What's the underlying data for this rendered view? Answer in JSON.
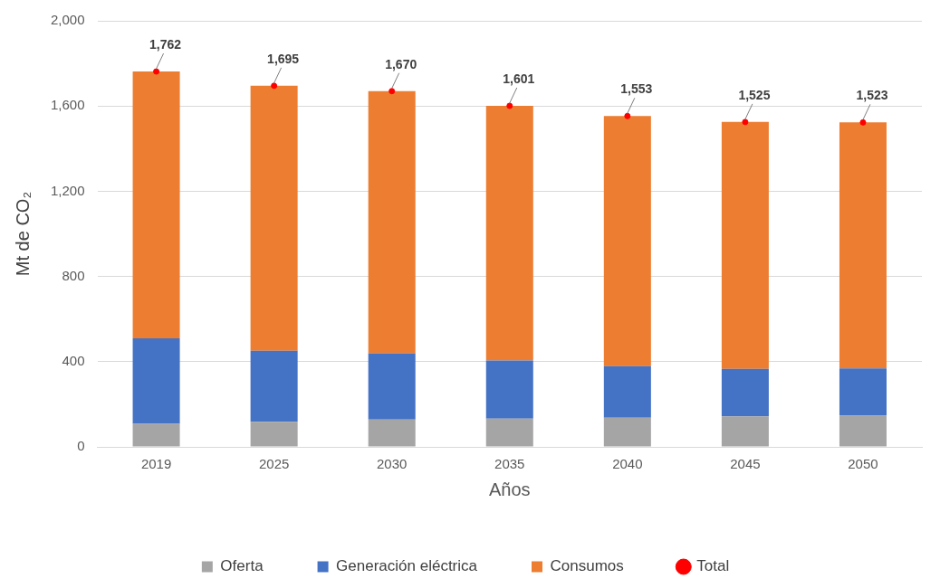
{
  "chart_data": {
    "type": "bar",
    "stacked": true,
    "xlabel": "Años",
    "ylabel": "Mt de CO₂",
    "categories": [
      "2019",
      "2025",
      "2030",
      "2035",
      "2040",
      "2045",
      "2050"
    ],
    "series": [
      {
        "name": "Oferta",
        "color": "#a5a5a5",
        "values": [
          108,
          118,
          128,
          133,
          137,
          143,
          146
        ]
      },
      {
        "name": "Generación eléctrica",
        "color": "#4472c4",
        "values": [
          402,
          333,
          312,
          272,
          242,
          223,
          222
        ]
      },
      {
        "name": "Consumos",
        "color": "#ed7d31",
        "values": [
          1252,
          1244,
          1230,
          1196,
          1174,
          1159,
          1155
        ]
      },
      {
        "name": "Total",
        "type": "scatter",
        "color": "#ff0000",
        "values": [
          1762,
          1695,
          1670,
          1601,
          1553,
          1525,
          1523
        ],
        "value_labels": [
          "1,762",
          "1,695",
          "1,670",
          "1,601",
          "1,553",
          "1,525",
          "1,523"
        ],
        "marker": "circle"
      }
    ],
    "ylim": [
      0,
      2000
    ],
    "yticks": [
      {
        "value": 0,
        "label": "0"
      },
      {
        "value": 400,
        "label": "400"
      },
      {
        "value": 800,
        "label": "800"
      },
      {
        "value": 1200,
        "label": "1,200"
      },
      {
        "value": 1600,
        "label": "1,600"
      },
      {
        "value": 2000,
        "label": "2,000"
      }
    ],
    "grid": "y",
    "legend": "bottom"
  }
}
